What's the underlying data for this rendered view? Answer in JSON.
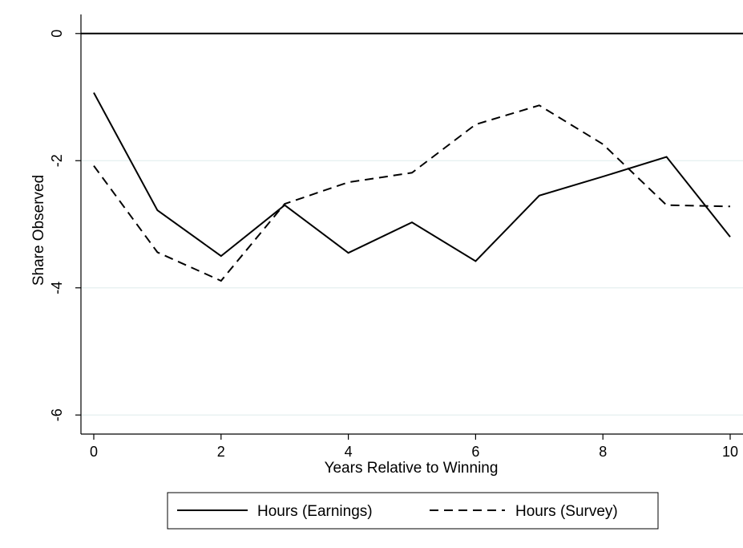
{
  "chart_data": {
    "type": "line",
    "xlabel": "Years Relative to Winning",
    "ylabel": "Share Observed",
    "xlim": [
      0,
      10
    ],
    "ylim": [
      -6.3,
      0.3
    ],
    "x_ticks": [
      0,
      2,
      4,
      6,
      8,
      10
    ],
    "x_tick_labels": [
      "0",
      "2",
      "4",
      "6",
      "8",
      "10"
    ],
    "y_ticks": [
      0,
      -2,
      -4,
      -6
    ],
    "y_tick_labels": [
      "0",
      "-2",
      "-4",
      "-6"
    ],
    "grid": true,
    "reference_line_y": 0,
    "legend_position": "bottom",
    "x": [
      0,
      1,
      2,
      3,
      4,
      5,
      6,
      7,
      8,
      9,
      10
    ],
    "series": [
      {
        "name": "Hours (Earnings)",
        "style": "solid",
        "color": "#000000",
        "values": [
          -0.93,
          -2.78,
          -3.5,
          -2.7,
          -3.45,
          -2.97,
          -3.58,
          -2.55,
          -2.25,
          -1.94,
          -3.2
        ]
      },
      {
        "name": "Hours (Survey)",
        "style": "dashed",
        "color": "#000000",
        "values": [
          -2.08,
          -3.44,
          -3.89,
          -2.68,
          -2.34,
          -2.19,
          -1.43,
          -1.13,
          -1.74,
          -2.7,
          -2.72
        ]
      }
    ],
    "colors": {
      "grid": "#e4efef",
      "axis": "#000000",
      "background": "#ffffff"
    }
  }
}
